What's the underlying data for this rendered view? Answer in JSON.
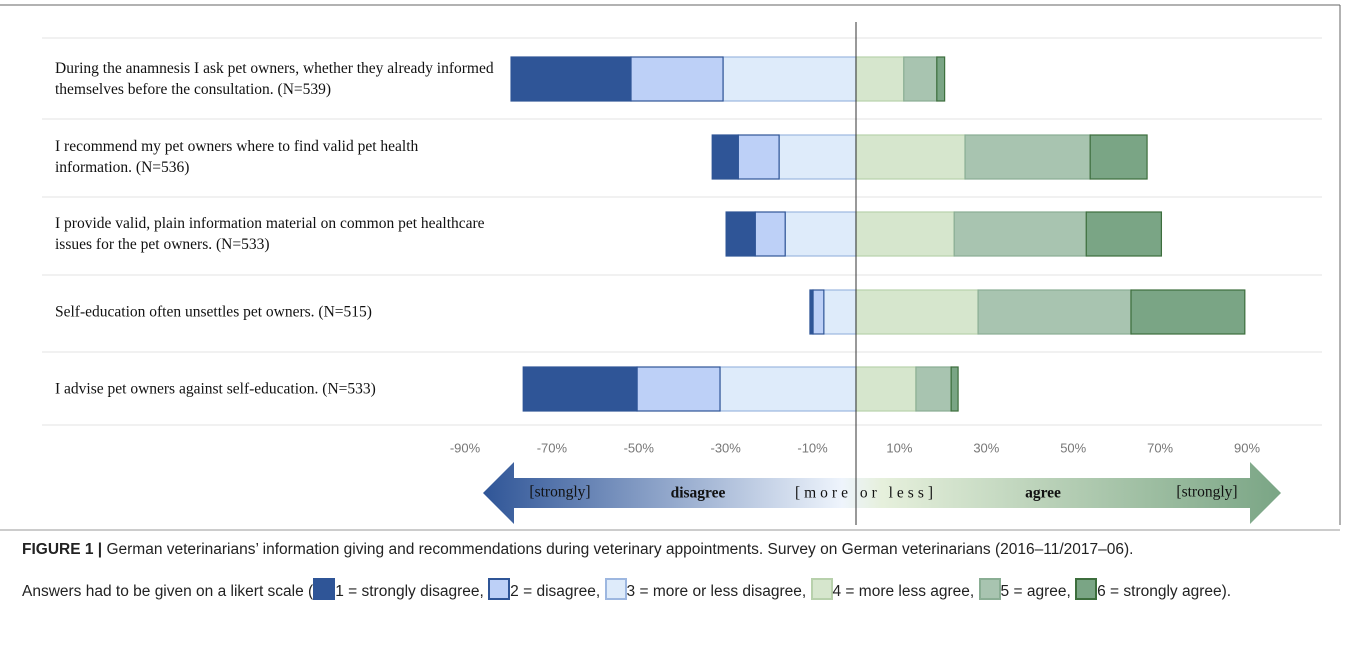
{
  "chart_data": {
    "type": "diverging_stacked_bar",
    "categories": [
      "During the anamnesis I ask pet owners, whether they already informed themselves before the consultation. (N=539)",
      "I recommend my pet owners where to find valid pet health information. (N=536)",
      "I provide valid, plain information material on common pet healthcare issues for the pet owners. (N=533)",
      "Self-education often unsettles pet owners. (N=515)",
      "I advise pet owners against self-education. (N=533)"
    ],
    "series": [
      {
        "name": "1 = strongly disagree",
        "color": "#2f5597",
        "edge_color": "#2f5597",
        "values": [
          -27.6,
          -6.0,
          -6.7,
          -0.7,
          -26.2
        ]
      },
      {
        "name": "2 = disagree",
        "color": "#bdd0f7",
        "edge_color": "#2f5597",
        "values": [
          -21.2,
          -9.4,
          -6.9,
          -2.5,
          -19.1
        ]
      },
      {
        "name": "3 = more or less disagree",
        "color": "#deebfa",
        "edge_color": "#9db7e0",
        "values": [
          -30.6,
          -17.7,
          -16.3,
          -7.4,
          -31.3
        ]
      },
      {
        "name": "4 = more less agree",
        "color": "#d6e6cd",
        "edge_color": "#b8d1ac",
        "values": [
          11.0,
          25.1,
          22.6,
          28.1,
          13.8
        ]
      },
      {
        "name": "5 = agree",
        "color": "#a8c4b0",
        "edge_color": "#8aae94",
        "values": [
          7.6,
          28.8,
          30.4,
          35.2,
          8.1
        ]
      },
      {
        "name": "6 = strongly agree",
        "color": "#7aa585",
        "edge_color": "#3d6e3d",
        "values": [
          1.8,
          13.1,
          17.3,
          26.2,
          1.6
        ]
      }
    ],
    "xlim": [
      -90,
      90
    ],
    "xticks": [
      {
        "value": -90,
        "label": "-90%"
      },
      {
        "value": -70,
        "label": "-70%"
      },
      {
        "value": -50,
        "label": "-50%"
      },
      {
        "value": -30,
        "label": "-30%"
      },
      {
        "value": -10,
        "label": "-10%"
      },
      {
        "value": 10,
        "label": "10%"
      },
      {
        "value": 30,
        "label": "30%"
      },
      {
        "value": 50,
        "label": "50%"
      },
      {
        "value": 70,
        "label": "70%"
      },
      {
        "value": 90,
        "label": "90%"
      }
    ],
    "scale_arrow": {
      "left_end": "[strongly]",
      "left": "disagree",
      "middle": "[more or less]",
      "right": "agree",
      "right_end": "[strongly]"
    },
    "caption": {
      "label": "FIGURE 1 |",
      "text": "German veterinarians’ information giving and recommendations during veterinary appointments. Survey on German veterinarians (2016–11/2017–06).",
      "legend_intro": "Answers had to be given on a likert scale (",
      "legend_end": ")."
    }
  }
}
